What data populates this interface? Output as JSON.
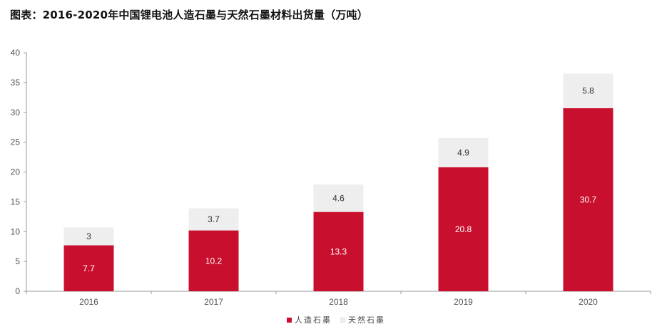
{
  "chart_data": {
    "type": "bar",
    "stacked": true,
    "title": "图表：2016-2020年中国锂电池人造石墨与天然石墨材料出货量（万吨）",
    "categories": [
      "2016",
      "2017",
      "2018",
      "2019",
      "2020"
    ],
    "series": [
      {
        "name": "人造石墨",
        "color": "#c8102e",
        "label_color": "#ffffff",
        "values": [
          7.7,
          10.2,
          13.3,
          20.8,
          30.7
        ]
      },
      {
        "name": "天然石墨",
        "color": "#eeeeee",
        "label_color": "#333333",
        "values": [
          3,
          3.7,
          4.6,
          4.9,
          5.8
        ]
      }
    ],
    "y_ticks": [
      0,
      5,
      10,
      15,
      20,
      25,
      30,
      35,
      40
    ],
    "ylim": [
      0,
      40
    ],
    "xlabel": "",
    "ylabel": "",
    "grid": false,
    "legend_position": "bottom-center"
  }
}
